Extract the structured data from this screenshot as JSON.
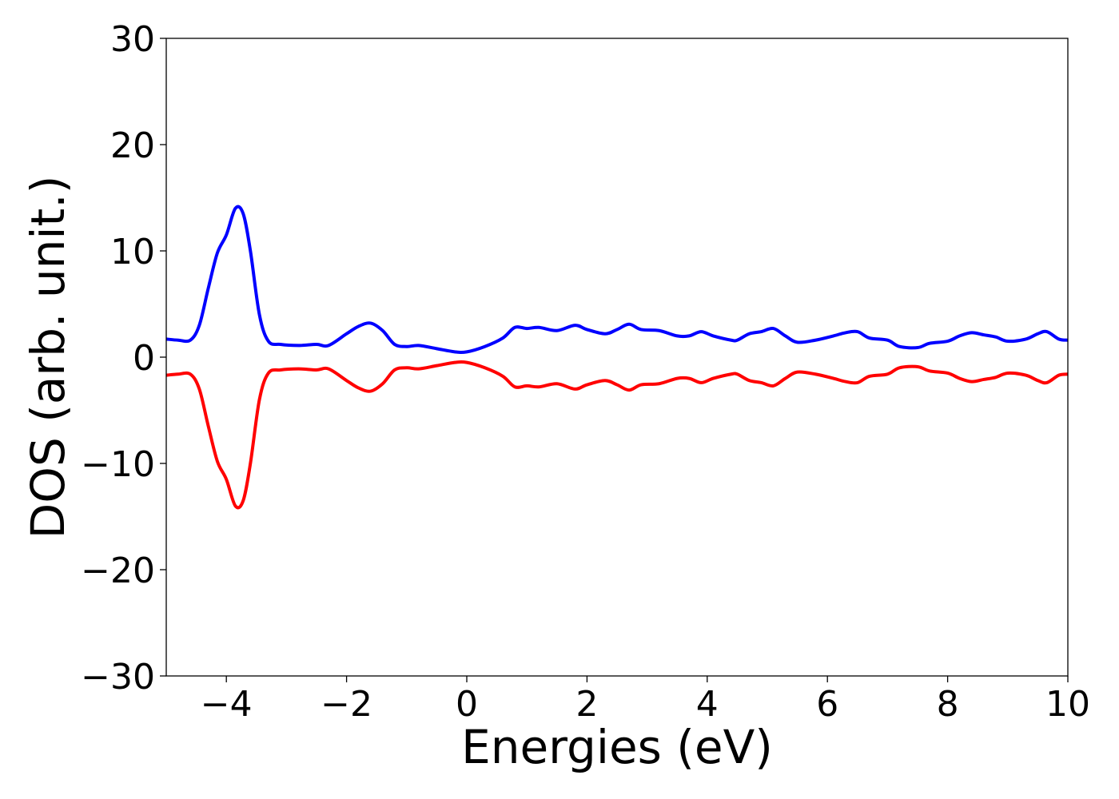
{
  "chart_data": {
    "type": "line",
    "title": "",
    "xlabel": "Energies (eV)",
    "ylabel": "DOS (arb. unit.)",
    "xlim": [
      -5,
      10
    ],
    "ylim": [
      -30,
      30
    ],
    "grid": false,
    "x_ticks": [
      -4,
      -2,
      0,
      2,
      4,
      6,
      8,
      10
    ],
    "x_tick_labels": [
      "−4",
      "−2",
      "0",
      "2",
      "4",
      "6",
      "8",
      "10"
    ],
    "y_ticks": [
      30,
      20,
      10,
      0,
      -10,
      -20,
      -30
    ],
    "y_tick_labels": [
      "30",
      "20",
      "10",
      "0",
      "−10",
      "−20",
      "−30"
    ],
    "colors": {
      "spin_up": "#0000ff",
      "spin_down": "#ff0000"
    },
    "series": [
      {
        "color": "#0000ff",
        "points": [
          [
            -5.0,
            1.7
          ],
          [
            -4.8,
            1.6
          ],
          [
            -4.6,
            1.6
          ],
          [
            -4.45,
            3.0
          ],
          [
            -4.3,
            6.5
          ],
          [
            -4.15,
            9.8
          ],
          [
            -4.0,
            11.5
          ],
          [
            -3.85,
            14.0
          ],
          [
            -3.72,
            13.5
          ],
          [
            -3.6,
            10.0
          ],
          [
            -3.45,
            4.0
          ],
          [
            -3.3,
            1.5
          ],
          [
            -3.1,
            1.2
          ],
          [
            -2.8,
            1.1
          ],
          [
            -2.5,
            1.2
          ],
          [
            -2.3,
            1.1
          ],
          [
            -2.0,
            2.2
          ],
          [
            -1.8,
            2.9
          ],
          [
            -1.6,
            3.2
          ],
          [
            -1.4,
            2.5
          ],
          [
            -1.2,
            1.2
          ],
          [
            -1.0,
            1.0
          ],
          [
            -0.8,
            1.1
          ],
          [
            -0.5,
            0.8
          ],
          [
            -0.2,
            0.5
          ],
          [
            0.0,
            0.5
          ],
          [
            0.3,
            1.0
          ],
          [
            0.6,
            1.8
          ],
          [
            0.8,
            2.8
          ],
          [
            1.0,
            2.7
          ],
          [
            1.2,
            2.8
          ],
          [
            1.5,
            2.5
          ],
          [
            1.8,
            3.0
          ],
          [
            2.0,
            2.6
          ],
          [
            2.3,
            2.2
          ],
          [
            2.5,
            2.6
          ],
          [
            2.7,
            3.1
          ],
          [
            2.9,
            2.6
          ],
          [
            3.2,
            2.5
          ],
          [
            3.5,
            2.0
          ],
          [
            3.7,
            2.0
          ],
          [
            3.9,
            2.4
          ],
          [
            4.1,
            2.0
          ],
          [
            4.4,
            1.6
          ],
          [
            4.5,
            1.6
          ],
          [
            4.7,
            2.2
          ],
          [
            4.9,
            2.4
          ],
          [
            5.1,
            2.7
          ],
          [
            5.3,
            2.0
          ],
          [
            5.5,
            1.4
          ],
          [
            5.8,
            1.6
          ],
          [
            6.1,
            2.0
          ],
          [
            6.3,
            2.3
          ],
          [
            6.5,
            2.4
          ],
          [
            6.7,
            1.8
          ],
          [
            7.0,
            1.6
          ],
          [
            7.2,
            1.0
          ],
          [
            7.5,
            0.9
          ],
          [
            7.7,
            1.3
          ],
          [
            8.0,
            1.5
          ],
          [
            8.2,
            2.0
          ],
          [
            8.4,
            2.3
          ],
          [
            8.6,
            2.1
          ],
          [
            8.8,
            1.9
          ],
          [
            9.0,
            1.5
          ],
          [
            9.3,
            1.7
          ],
          [
            9.5,
            2.2
          ],
          [
            9.65,
            2.4
          ],
          [
            9.85,
            1.7
          ],
          [
            10.0,
            1.6
          ]
        ]
      },
      {
        "color": "#ff0000",
        "points": [
          [
            -5.0,
            -1.7
          ],
          [
            -4.8,
            -1.6
          ],
          [
            -4.6,
            -1.6
          ],
          [
            -4.45,
            -3.0
          ],
          [
            -4.3,
            -6.5
          ],
          [
            -4.15,
            -9.8
          ],
          [
            -4.0,
            -11.5
          ],
          [
            -3.85,
            -14.0
          ],
          [
            -3.72,
            -13.5
          ],
          [
            -3.6,
            -10.0
          ],
          [
            -3.45,
            -4.0
          ],
          [
            -3.3,
            -1.5
          ],
          [
            -3.1,
            -1.2
          ],
          [
            -2.8,
            -1.1
          ],
          [
            -2.5,
            -1.2
          ],
          [
            -2.3,
            -1.1
          ],
          [
            -2.0,
            -2.2
          ],
          [
            -1.8,
            -2.9
          ],
          [
            -1.6,
            -3.2
          ],
          [
            -1.4,
            -2.5
          ],
          [
            -1.2,
            -1.2
          ],
          [
            -1.0,
            -1.0
          ],
          [
            -0.8,
            -1.1
          ],
          [
            -0.5,
            -0.8
          ],
          [
            -0.2,
            -0.5
          ],
          [
            0.0,
            -0.5
          ],
          [
            0.3,
            -1.0
          ],
          [
            0.6,
            -1.8
          ],
          [
            0.8,
            -2.8
          ],
          [
            1.0,
            -2.7
          ],
          [
            1.2,
            -2.8
          ],
          [
            1.5,
            -2.5
          ],
          [
            1.8,
            -3.0
          ],
          [
            2.0,
            -2.6
          ],
          [
            2.3,
            -2.2
          ],
          [
            2.5,
            -2.6
          ],
          [
            2.7,
            -3.1
          ],
          [
            2.9,
            -2.6
          ],
          [
            3.2,
            -2.5
          ],
          [
            3.5,
            -2.0
          ],
          [
            3.7,
            -2.0
          ],
          [
            3.9,
            -2.4
          ],
          [
            4.1,
            -2.0
          ],
          [
            4.4,
            -1.6
          ],
          [
            4.5,
            -1.6
          ],
          [
            4.7,
            -2.2
          ],
          [
            4.9,
            -2.4
          ],
          [
            5.1,
            -2.7
          ],
          [
            5.3,
            -2.0
          ],
          [
            5.5,
            -1.4
          ],
          [
            5.8,
            -1.6
          ],
          [
            6.1,
            -2.0
          ],
          [
            6.3,
            -2.3
          ],
          [
            6.5,
            -2.4
          ],
          [
            6.7,
            -1.8
          ],
          [
            7.0,
            -1.6
          ],
          [
            7.2,
            -1.0
          ],
          [
            7.5,
            -0.9
          ],
          [
            7.7,
            -1.3
          ],
          [
            8.0,
            -1.5
          ],
          [
            8.2,
            -2.0
          ],
          [
            8.4,
            -2.3
          ],
          [
            8.6,
            -2.1
          ],
          [
            8.8,
            -1.9
          ],
          [
            9.0,
            -1.5
          ],
          [
            9.3,
            -1.7
          ],
          [
            9.5,
            -2.2
          ],
          [
            9.65,
            -2.4
          ],
          [
            9.85,
            -1.7
          ],
          [
            10.0,
            -1.6
          ]
        ]
      }
    ]
  }
}
